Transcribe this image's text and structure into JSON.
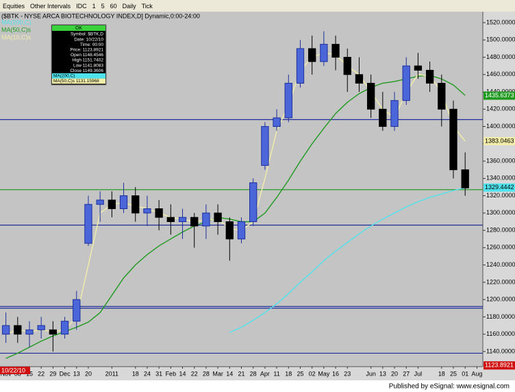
{
  "toolbar": {
    "items": [
      "Equities",
      "Other Intervals",
      "IDC",
      "1",
      "5",
      "60",
      "Daily",
      "Tick"
    ]
  },
  "chart_data": {
    "type": "candlestick",
    "title": "($BTK - NYSE ARCA BIOTECHNOLOGY INDEX,D] Dynamic,0:00-24:00",
    "categories": [
      "Nov",
      "08",
      "15",
      "22",
      "29",
      "Dec",
      "13",
      "20",
      null,
      "2011",
      null,
      "18",
      "24",
      "31",
      "Feb",
      "14",
      "22",
      "28",
      "Mar",
      "14",
      "21",
      "28",
      "Apr",
      "11",
      "18",
      "25",
      "02",
      "May",
      "16",
      "23",
      null,
      "Jun",
      "13",
      "20",
      "27",
      "Jul",
      null,
      "18",
      "25",
      "01",
      "Aug"
    ],
    "open": [
      1160,
      1170,
      1160,
      1165,
      1165,
      1160,
      1175,
      1265,
      1310,
      1315,
      1305,
      1320,
      1300,
      1305,
      1295,
      1290,
      1295,
      1285,
      1300,
      1290,
      1270,
      1290,
      1355,
      1400,
      1410,
      1450,
      1490,
      1475,
      1495,
      1480,
      1460,
      1450,
      1420,
      1400,
      1430,
      1470,
      1465,
      1450,
      1420,
      1350,
      null
    ],
    "high": [
      1185,
      1180,
      1175,
      1180,
      1175,
      1180,
      1210,
      1320,
      1325,
      1325,
      1335,
      1330,
      1320,
      1315,
      1310,
      1305,
      1300,
      1310,
      1310,
      1295,
      1295,
      1340,
      1405,
      1420,
      1460,
      1500,
      1505,
      1510,
      1505,
      1490,
      1480,
      1460,
      1440,
      1440,
      1480,
      1485,
      1475,
      1460,
      1430,
      1370,
      null
    ],
    "low": [
      1150,
      1150,
      1145,
      1155,
      1140,
      1155,
      1165,
      1262,
      1290,
      1295,
      1300,
      1290,
      1285,
      1280,
      1275,
      1270,
      1260,
      1270,
      1275,
      1245,
      1265,
      1285,
      1350,
      1395,
      1405,
      1445,
      1460,
      1470,
      1465,
      1440,
      1440,
      1410,
      1395,
      1395,
      1425,
      1455,
      1440,
      1400,
      1340,
      1320,
      null
    ],
    "close": [
      1170,
      1160,
      1165,
      1170,
      1160,
      1175,
      1200,
      1310,
      1315,
      1305,
      1320,
      1300,
      1305,
      1295,
      1290,
      1295,
      1285,
      1300,
      1290,
      1270,
      1290,
      1335,
      1400,
      1410,
      1450,
      1490,
      1475,
      1495,
      1480,
      1460,
      1450,
      1420,
      1400,
      1430,
      1470,
      1465,
      1450,
      1420,
      1350,
      1329,
      null
    ],
    "up_color": "#1c2f9c",
    "down_color": "#000000",
    "series": [
      {
        "name": "MA(200,C)",
        "color": "#4fe3ee",
        "values": [
          null,
          null,
          null,
          null,
          null,
          null,
          null,
          null,
          null,
          null,
          null,
          null,
          null,
          null,
          null,
          null,
          null,
          null,
          null,
          1162,
          1168,
          1176,
          1185,
          1195,
          1207,
          1220,
          1232,
          1245,
          1256,
          1266,
          1276,
          1285,
          1293,
          1300,
          1307,
          1313,
          1318,
          1322,
          1326,
          1329,
          null
        ]
      },
      {
        "name": "MA(50,C)s",
        "color": "#1f9a1f",
        "values": [
          1132,
          1138,
          1145,
          1152,
          1158,
          1163,
          1168,
          1174,
          1185,
          1205,
          1225,
          1240,
          1252,
          1262,
          1270,
          1278,
          1285,
          1290,
          1295,
          1293,
          1290,
          1290,
          1300,
          1318,
          1338,
          1360,
          1380,
          1398,
          1415,
          1428,
          1438,
          1445,
          1450,
          1452,
          1455,
          1458,
          1459,
          1455,
          1448,
          1436,
          null
        ]
      },
      {
        "name": "MA(10,C)s",
        "color": "#f2eeaa",
        "values": [
          1160,
          1165,
          1163,
          1165,
          1163,
          1165,
          1180,
          1240,
          1300,
          1310,
          1312,
          1308,
          1305,
          1300,
          1295,
          1293,
          1290,
          1292,
          1293,
          1282,
          1280,
          1290,
          1340,
          1395,
          1425,
          1465,
          1480,
          1485,
          1483,
          1470,
          1460,
          1440,
          1420,
          1410,
          1440,
          1460,
          1458,
          1440,
          1400,
          1383,
          null
        ]
      }
    ],
    "hlines": [
      {
        "value": 1408,
        "color": "#1e2c9a"
      },
      {
        "value": 1286,
        "color": "#1e2c9a"
      },
      {
        "value": 1192,
        "color": "#1e2c9a"
      },
      {
        "value": 1190,
        "color": "#1e2c9a"
      },
      {
        "value": 1138,
        "color": "#1e2c9a"
      },
      {
        "value": 1327,
        "color": "#2a9a2a"
      }
    ],
    "price_flags": [
      {
        "value": 1435.6373,
        "color": "#1f9a1f"
      },
      {
        "value": 1383.0463,
        "color": "#f2eeaa"
      },
      {
        "value": 1329.4442,
        "color": "#4fe3ee"
      },
      {
        "value": 1123.8921,
        "color": "#d01010"
      }
    ],
    "date_flag": "10/22/10",
    "ylim": [
      1122.5,
      1532.7
    ],
    "yticks": [
      {
        "value": 1140,
        "label": "1140.0000"
      },
      {
        "value": 1160,
        "label": "1160.0000"
      },
      {
        "value": 1180,
        "label": "1180.0000"
      },
      {
        "value": 1200,
        "label": "1200.0000"
      },
      {
        "value": 1220,
        "label": "1220.0000"
      },
      {
        "value": 1240,
        "label": "1240.0000"
      },
      {
        "value": 1260,
        "label": "1260.0000"
      },
      {
        "value": 1280,
        "label": "1280.0000"
      },
      {
        "value": 1300,
        "label": "1300.0000"
      },
      {
        "value": 1320,
        "label": "1320.0000"
      },
      {
        "value": 1340,
        "label": "1340.0000"
      },
      {
        "value": 1360,
        "label": "1360.0000"
      },
      {
        "value": 1380,
        "label": "1380.0000"
      },
      {
        "value": 1400,
        "label": "1400.0000"
      },
      {
        "value": 1420,
        "label": "1420.0000"
      },
      {
        "value": 1440,
        "label": "1440.0000"
      },
      {
        "value": 1460,
        "label": "1460.0000"
      },
      {
        "value": 1480,
        "label": "1480.0000"
      },
      {
        "value": 1500,
        "label": "1500.0000"
      },
      {
        "value": 1520,
        "label": "1520.0000"
      }
    ]
  },
  "data_window": {
    "button": "OK",
    "rows": [
      "Symbol: $BTK,D",
      "Date: 10/22/10",
      "Time: 00:00",
      "Price: 1123.8921",
      "Open 1148.4546",
      "High 1151.7402",
      "Low 1141.8083",
      "Close 1149.3606",
      "MA(200,C)",
      "MA(50,C)s 1131.15968"
    ]
  },
  "footer": "Published by eSignal: www.esignal.com"
}
